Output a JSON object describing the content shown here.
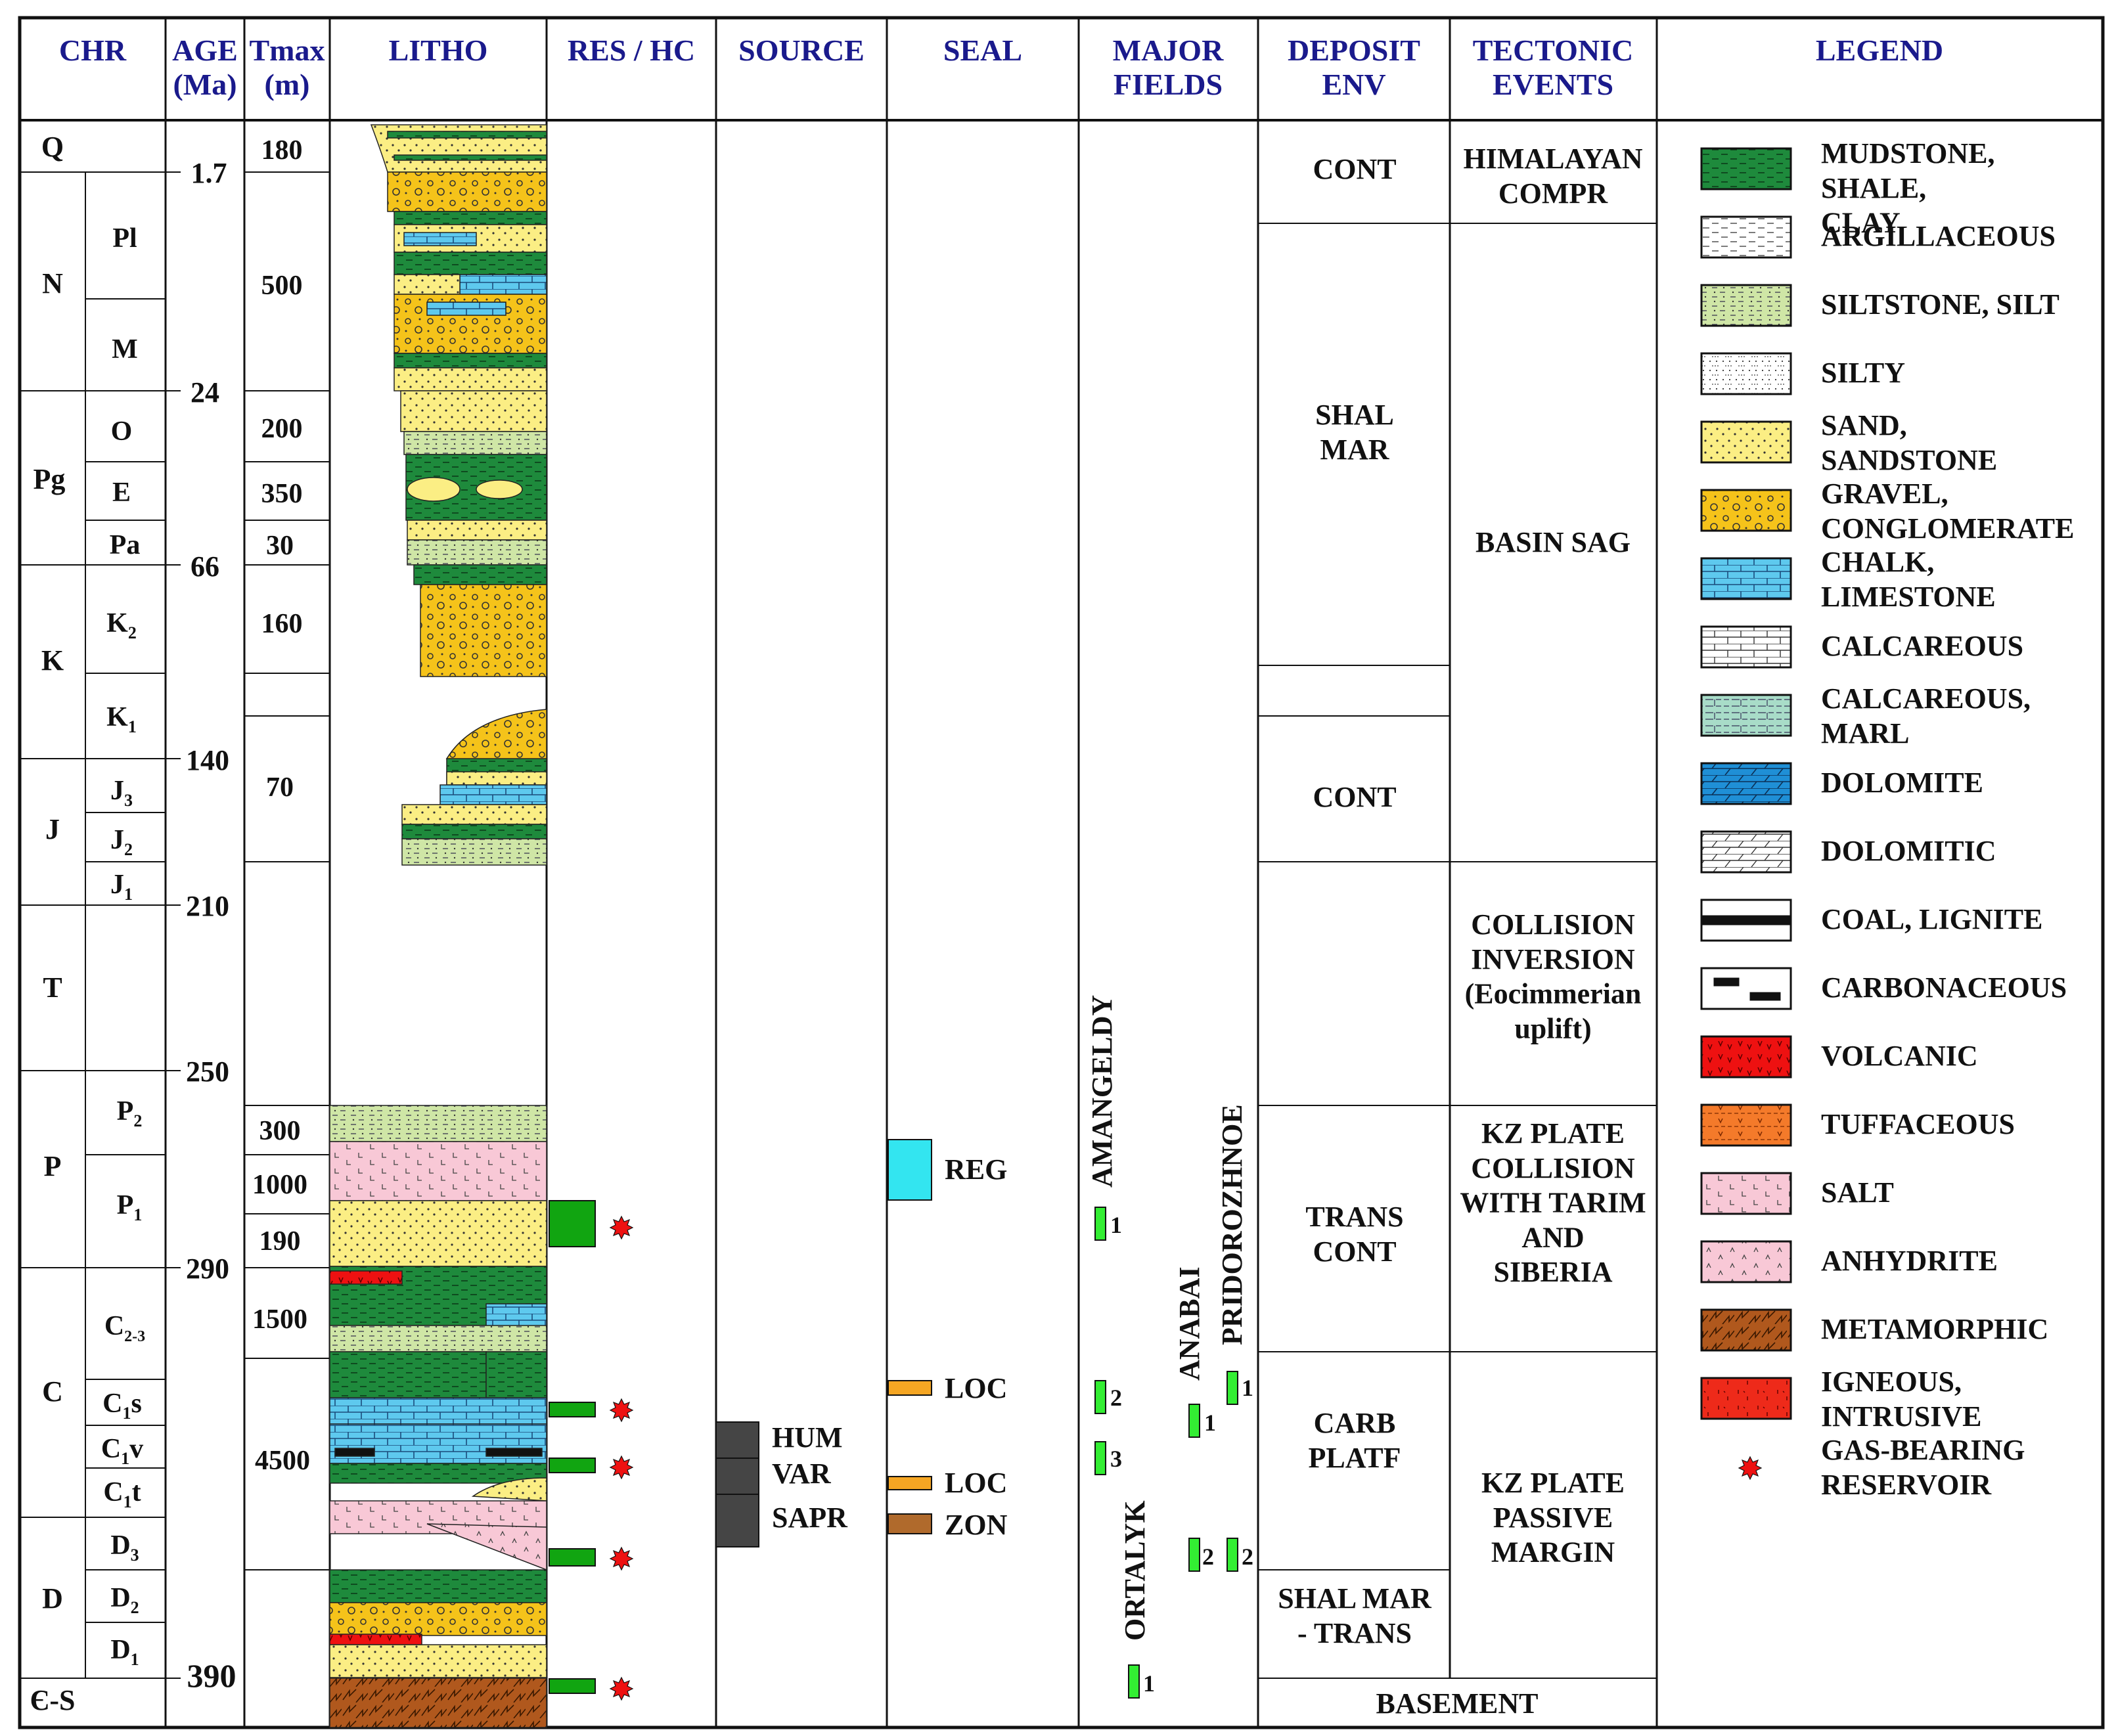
{
  "headers": {
    "chr": "CHR",
    "age": [
      "AGE",
      "(Ma)"
    ],
    "tmax": [
      "Tmax",
      "(m)"
    ],
    "litho": "LITHO",
    "res": "RES / HC",
    "source": "SOURCE",
    "seal": "SEAL",
    "fields": [
      "MAJOR",
      "FIELDS"
    ],
    "deposit": [
      "DEPOSIT",
      "ENV"
    ],
    "tectonic": [
      "TECTONIC",
      "EVENTS"
    ],
    "legend": "LEGEND"
  },
  "systems": [
    {
      "label": "Q"
    },
    {
      "label": "N"
    },
    {
      "label": "Pg"
    },
    {
      "label": "K"
    },
    {
      "label": "J"
    },
    {
      "label": "T"
    },
    {
      "label": "P"
    },
    {
      "label": "C"
    },
    {
      "label": "D"
    },
    {
      "label": "Є-S"
    }
  ],
  "series": [
    {
      "main": "Pl",
      "sub": ""
    },
    {
      "main": "M",
      "sub": ""
    },
    {
      "main": "O",
      "sub": ""
    },
    {
      "main": "E",
      "sub": ""
    },
    {
      "main": "Pa",
      "sub": ""
    },
    {
      "main": "K",
      "sub": "2"
    },
    {
      "main": "K",
      "sub": "1"
    },
    {
      "main": "J",
      "sub": "3"
    },
    {
      "main": "J",
      "sub": "2"
    },
    {
      "main": "J",
      "sub": "1"
    },
    {
      "main": "P",
      "sub": "2"
    },
    {
      "main": "P",
      "sub": "1"
    },
    {
      "main": "C",
      "sub": "2-3"
    },
    {
      "main": "C",
      "sub": "1",
      "tail": "s"
    },
    {
      "main": "C",
      "sub": "1",
      "tail": "v"
    },
    {
      "main": "C",
      "sub": "1",
      "tail": "t"
    },
    {
      "main": "D",
      "sub": "3"
    },
    {
      "main": "D",
      "sub": "2"
    },
    {
      "main": "D",
      "sub": "1"
    }
  ],
  "ages": [
    "1.7",
    "24",
    "66",
    "140",
    "210",
    "250",
    "290",
    "390"
  ],
  "tmax": [
    "180",
    "500",
    "200",
    "350",
    "30",
    "160",
    "70",
    "300",
    "1000",
    "190",
    "1500",
    "4500"
  ],
  "source": {
    "items": [
      "HUM",
      "VAR",
      "SAPR"
    ],
    "color": "#454545"
  },
  "seal": [
    {
      "label": "REG",
      "color": "#33e5f0"
    },
    {
      "label": "LOC",
      "color": "#f5a623"
    },
    {
      "label": "LOC",
      "color": "#f5a623"
    },
    {
      "label": "ZON",
      "color": "#b06a2c"
    }
  ],
  "fields": {
    "names": [
      "AMANGELDY",
      "ANABAI",
      "PRIDOROZHNOE",
      "ORTALYK"
    ],
    "markers": [
      "1",
      "2",
      "3",
      "1",
      "1",
      "2",
      "2",
      "1"
    ],
    "color": "#33ee33"
  },
  "deposit": [
    "CONT",
    "SHAL MAR",
    "CONT",
    "TRANS CONT",
    "CARB PLATF",
    "SHAL MAR - TRANS",
    "BASEMENT"
  ],
  "tectonic": [
    "HIMALAYAN COMPR",
    "BASIN SAG",
    "COLLISION INVERSION (Eocimmerian uplift)",
    "KZ PLATE COLLISION WITH TARIM AND SIBERIA",
    "KZ PLATE PASSIVE MARGIN"
  ],
  "legend": [
    {
      "label": "MUDSTONE, SHALE, CLAY",
      "pattern": "mudstone"
    },
    {
      "label": "ARGILLACEOUS",
      "pattern": "argillaceous"
    },
    {
      "label": "SILTSTONE, SILT",
      "pattern": "siltstone"
    },
    {
      "label": "SILTY",
      "pattern": "silty"
    },
    {
      "label": "SAND, SANDSTONE",
      "pattern": "sand"
    },
    {
      "label": "GRAVEL, CONGLOMERATE",
      "pattern": "gravel"
    },
    {
      "label": "CHALK, LIMESTONE",
      "pattern": "chalk"
    },
    {
      "label": "CALCAREOUS",
      "pattern": "calcareous"
    },
    {
      "label": "CALCAREOUS, MARL",
      "pattern": "marl"
    },
    {
      "label": "DOLOMITE",
      "pattern": "dolomite"
    },
    {
      "label": "DOLOMITIC",
      "pattern": "dolomitic"
    },
    {
      "label": "COAL, LIGNITE",
      "pattern": "coal"
    },
    {
      "label": "CARBONACEOUS",
      "pattern": "carbonaceous"
    },
    {
      "label": "VOLCANIC",
      "pattern": "volcanic"
    },
    {
      "label": "TUFFACEOUS",
      "pattern": "tuffaceous"
    },
    {
      "label": "SALT",
      "pattern": "salt"
    },
    {
      "label": "ANHYDRITE",
      "pattern": "anhydrite"
    },
    {
      "label": "METAMORPHIC",
      "pattern": "metamorphic"
    },
    {
      "label": "IGNEOUS, INTRUSIVE",
      "pattern": "igneous"
    },
    {
      "label": "GAS-BEARING RESERVOIR",
      "pattern": "gas"
    }
  ],
  "colors": {
    "header_text": "#1a1a8c",
    "mudstone": "#1e8a3c",
    "sand": "#fbee84",
    "silt": "#cfe6a6",
    "chalk": "#5ec9ee",
    "salt": "#f8c8d6",
    "volcanic": "#ee1111",
    "metamorphic": "#b0581d",
    "reservoir": "#11a511",
    "gas_star": "#ee1111"
  }
}
